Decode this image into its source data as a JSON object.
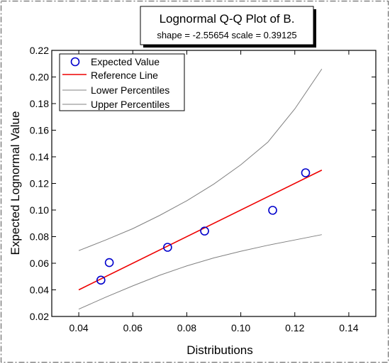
{
  "chart_data": {
    "type": "scatter",
    "title": "Lognormal Q-Q Plot of B.",
    "subtitle": "shape = -2.55654  scale = 0.39125",
    "xlabel": "Distributions",
    "ylabel": "Expected Lognormal Value",
    "xlim": [
      0.03,
      0.15
    ],
    "ylim": [
      0.02,
      0.22
    ],
    "xticks": [
      "0.04",
      "0.06",
      "0.08",
      "0.10",
      "0.12",
      "0.14"
    ],
    "yticks": [
      "0.02",
      "0.04",
      "0.06",
      "0.08",
      "0.10",
      "0.12",
      "0.14",
      "0.16",
      "0.18",
      "0.20",
      "0.22"
    ],
    "grid": false,
    "legend_position": "top-left",
    "series": [
      {
        "name": "Expected Value",
        "kind": "points",
        "color": "#0000cc",
        "points": [
          {
            "x": 0.0482,
            "y": 0.0473
          },
          {
            "x": 0.0513,
            "y": 0.0605
          },
          {
            "x": 0.0729,
            "y": 0.072
          },
          {
            "x": 0.0866,
            "y": 0.0842
          },
          {
            "x": 0.1118,
            "y": 0.0998
          },
          {
            "x": 0.124,
            "y": 0.128
          }
        ]
      },
      {
        "name": "Reference Line",
        "kind": "line",
        "color": "#ee0000",
        "points": [
          {
            "x": 0.04,
            "y": 0.04
          },
          {
            "x": 0.13,
            "y": 0.13
          }
        ]
      },
      {
        "name": "Lower Percentiles",
        "kind": "line",
        "color": "#808080",
        "points": [
          {
            "x": 0.04,
            "y": 0.0255
          },
          {
            "x": 0.05,
            "y": 0.0345
          },
          {
            "x": 0.06,
            "y": 0.043
          },
          {
            "x": 0.07,
            "y": 0.051
          },
          {
            "x": 0.08,
            "y": 0.058
          },
          {
            "x": 0.09,
            "y": 0.064
          },
          {
            "x": 0.1,
            "y": 0.069
          },
          {
            "x": 0.11,
            "y": 0.0735
          },
          {
            "x": 0.12,
            "y": 0.0775
          },
          {
            "x": 0.13,
            "y": 0.0815
          }
        ]
      },
      {
        "name": "Upper Percentiles",
        "kind": "line",
        "color": "#808080",
        "points": [
          {
            "x": 0.04,
            "y": 0.0695
          },
          {
            "x": 0.05,
            "y": 0.0775
          },
          {
            "x": 0.06,
            "y": 0.086
          },
          {
            "x": 0.07,
            "y": 0.096
          },
          {
            "x": 0.08,
            "y": 0.107
          },
          {
            "x": 0.09,
            "y": 0.1195
          },
          {
            "x": 0.1,
            "y": 0.134
          },
          {
            "x": 0.11,
            "y": 0.151
          },
          {
            "x": 0.12,
            "y": 0.176
          },
          {
            "x": 0.13,
            "y": 0.206
          }
        ]
      }
    ]
  }
}
